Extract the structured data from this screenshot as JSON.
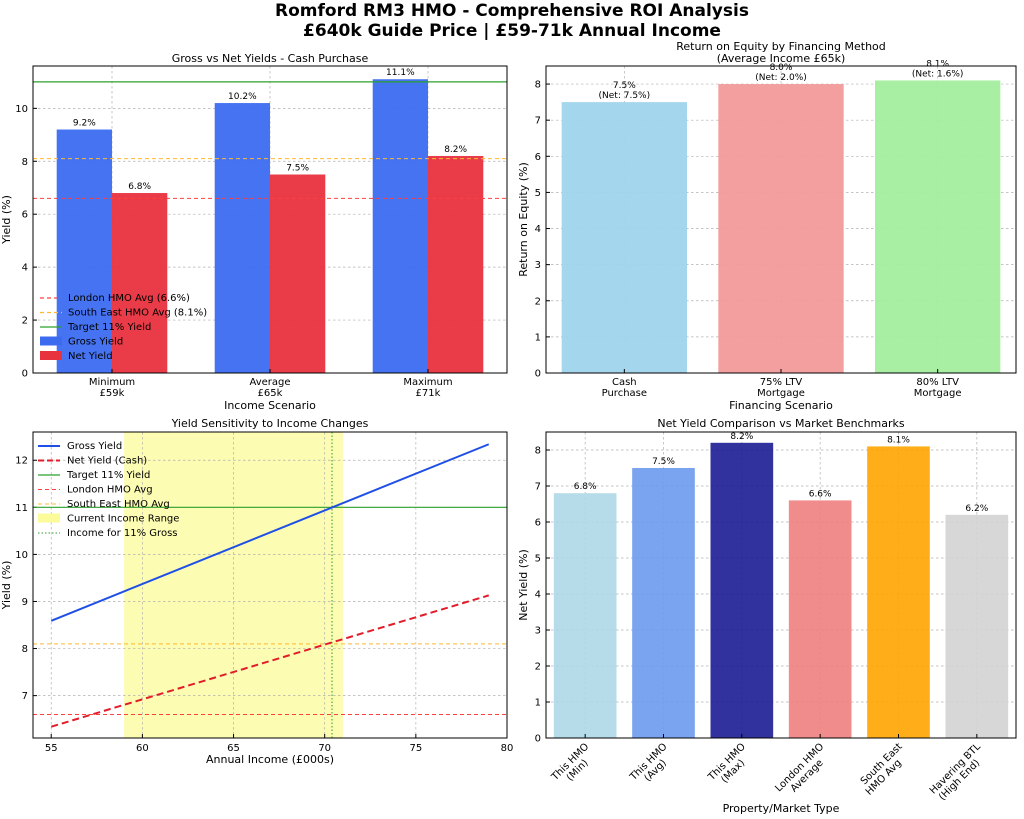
{
  "figure": {
    "title_line1": "Romford RM3 HMO - Comprehensive ROI Analysis",
    "title_line2": "£640k Guide Price | £59-71k Annual Income"
  },
  "colors": {
    "gross": "#3c6bf0",
    "net": "#e8323e",
    "target": "#2ca02c",
    "london": "#ff4040",
    "south_east": "#ffb833",
    "cash": "#9fd4ec",
    "ltv75": "#f29a9a",
    "ltv80": "#a4ee9e"
  },
  "chart_data": [
    {
      "type": "bar",
      "title": "Gross vs Net Yields - Cash Purchase",
      "xlabel": "Income Scenario",
      "ylabel": "Yield (%)",
      "categories": [
        [
          "Minimum",
          "£59k"
        ],
        [
          "Average",
          "£65k"
        ],
        [
          "Maximum",
          "£71k"
        ]
      ],
      "series": [
        {
          "name": "Gross Yield",
          "values": [
            9.2,
            10.2,
            11.1
          ],
          "labels": [
            "9.2%",
            "10.2%",
            "11.1%"
          ]
        },
        {
          "name": "Net Yield",
          "values": [
            6.8,
            7.5,
            8.2
          ],
          "labels": [
            "6.8%",
            "7.5%",
            "8.2%"
          ]
        }
      ],
      "reference_lines": [
        {
          "name": "London HMO Avg (6.6%)",
          "value": 6.6
        },
        {
          "name": "South East HMO Avg (8.1%)",
          "value": 8.1
        },
        {
          "name": "Target 11% Yield",
          "value": 11
        }
      ],
      "ylim": [
        0,
        11.6
      ],
      "yticks": [
        0,
        2,
        4,
        6,
        8,
        10
      ],
      "legend": "bottom-left"
    },
    {
      "type": "bar",
      "title": "Return on Equity by Financing Method",
      "subtitle": "(Average Income £65k)",
      "xlabel": "Financing Scenario",
      "ylabel": "Return on Equity (%)",
      "categories": [
        [
          "Cash",
          "Purchase"
        ],
        [
          "75% LTV",
          "Mortgage"
        ],
        [
          "80% LTV",
          "Mortgage"
        ]
      ],
      "values": [
        7.5,
        8.0,
        8.1
      ],
      "labels": [
        [
          "7.5%",
          "(Net: 7.5%)"
        ],
        [
          "8.0%",
          "(Net: 2.0%)"
        ],
        [
          "8.1%",
          "(Net: 1.6%)"
        ]
      ],
      "ylim": [
        0,
        8.5
      ],
      "yticks": [
        0,
        1,
        2,
        3,
        4,
        5,
        6,
        7,
        8
      ]
    },
    {
      "type": "line",
      "title": "Yield Sensitivity to Income Changes",
      "xlabel": "Annual Income (£000s)",
      "ylabel": "Yield (%)",
      "xlim": [
        54,
        80
      ],
      "ylim": [
        6.1,
        12.6
      ],
      "xticks": [
        55,
        60,
        65,
        70,
        75,
        80
      ],
      "yticks": [
        7,
        8,
        9,
        10,
        11,
        12
      ],
      "series": [
        {
          "name": "Gross Yield",
          "x": [
            55,
            79
          ],
          "y": [
            8.59,
            12.34
          ]
        },
        {
          "name": "Net Yield (Cash)",
          "x": [
            55,
            79
          ],
          "y": [
            6.34,
            9.13
          ]
        }
      ],
      "reference_lines": [
        {
          "name": "Target 11% Yield",
          "value": 11
        },
        {
          "name": "London HMO Avg",
          "value": 6.6
        },
        {
          "name": "South East HMO Avg",
          "value": 8.1
        }
      ],
      "band": {
        "name": "Current Income Range",
        "x0": 59,
        "x1": 71
      },
      "vline": {
        "name": "Income for 11% Gross",
        "x": 70.4
      },
      "legend": "top-left"
    },
    {
      "type": "bar",
      "title": "Net Yield Comparison vs Market Benchmarks",
      "xlabel": "Property/Market Type",
      "ylabel": "Net Yield (%)",
      "categories": [
        [
          "This HMO",
          "(Min)"
        ],
        [
          "This HMO",
          "(Avg)"
        ],
        [
          "This HMO",
          "(Max)"
        ],
        [
          "London HMO",
          "Average"
        ],
        [
          "South East",
          "HMO Avg"
        ],
        [
          "Havering BTL",
          "(High End)"
        ]
      ],
      "values": [
        6.8,
        7.5,
        8.2,
        6.6,
        8.1,
        6.2
      ],
      "labels": [
        "6.8%",
        "7.5%",
        "8.2%",
        "6.6%",
        "8.1%",
        "6.2%"
      ],
      "bar_colors": [
        "#add8e6",
        "#6b9aee",
        "#1c1c94",
        "#f08080",
        "#ffa500",
        "#d3d3d3"
      ],
      "ylim": [
        0,
        8.5
      ],
      "yticks": [
        0,
        1,
        2,
        3,
        4,
        5,
        6,
        7,
        8
      ]
    }
  ]
}
